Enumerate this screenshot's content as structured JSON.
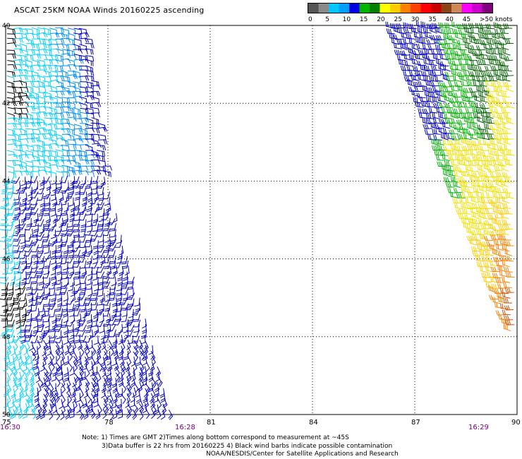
{
  "title": "ASCAT 25KM NOAA Winds 20160225 ascending",
  "legend": {
    "colors": [
      "#555555",
      "#8a8a8a",
      "#00c8ff",
      "#00a0ff",
      "#0000e6",
      "#00b400",
      "#008000",
      "#ffff00",
      "#ffcc00",
      "#ff8000",
      "#ff4000",
      "#ff0000",
      "#cc0000",
      "#8b4513",
      "#cc8855",
      "#ff00ff",
      "#cc00cc",
      "#800080"
    ],
    "labels": [
      "0",
      "5",
      "10",
      "15",
      "20",
      "25",
      "30",
      "35",
      "40",
      "45",
      ">50 knots"
    ]
  },
  "map": {
    "lon_labels": [
      "75",
      "78",
      "81",
      "84",
      "87",
      "90"
    ],
    "lat_labels": [
      "40",
      "42",
      "44",
      "46",
      "48",
      "50"
    ],
    "time_labels": [
      "16:30",
      "16:28",
      "16:29"
    ],
    "barb_colors": {
      "black": "#000000",
      "cyan": "#00d0ff",
      "skyblue": "#0090ff",
      "blue": "#0000cc",
      "green": "#00b400",
      "darkgreen": "#006400",
      "yellow": "#f0e000",
      "yellow2": "#ffcc00",
      "orange": "#ff8000",
      "darkorange": "#d05000"
    }
  },
  "notes": {
    "line1": "Note: 1) Times are GMT 2)Times along bottom correspond to measurement at ~45S",
    "line2": "3)Data buffer is 22 hrs from 20160225 4) Black wind barbs indicate possible contamination",
    "line3": "NOAA/NESDIS/Center for Satellite Applications and Research"
  }
}
